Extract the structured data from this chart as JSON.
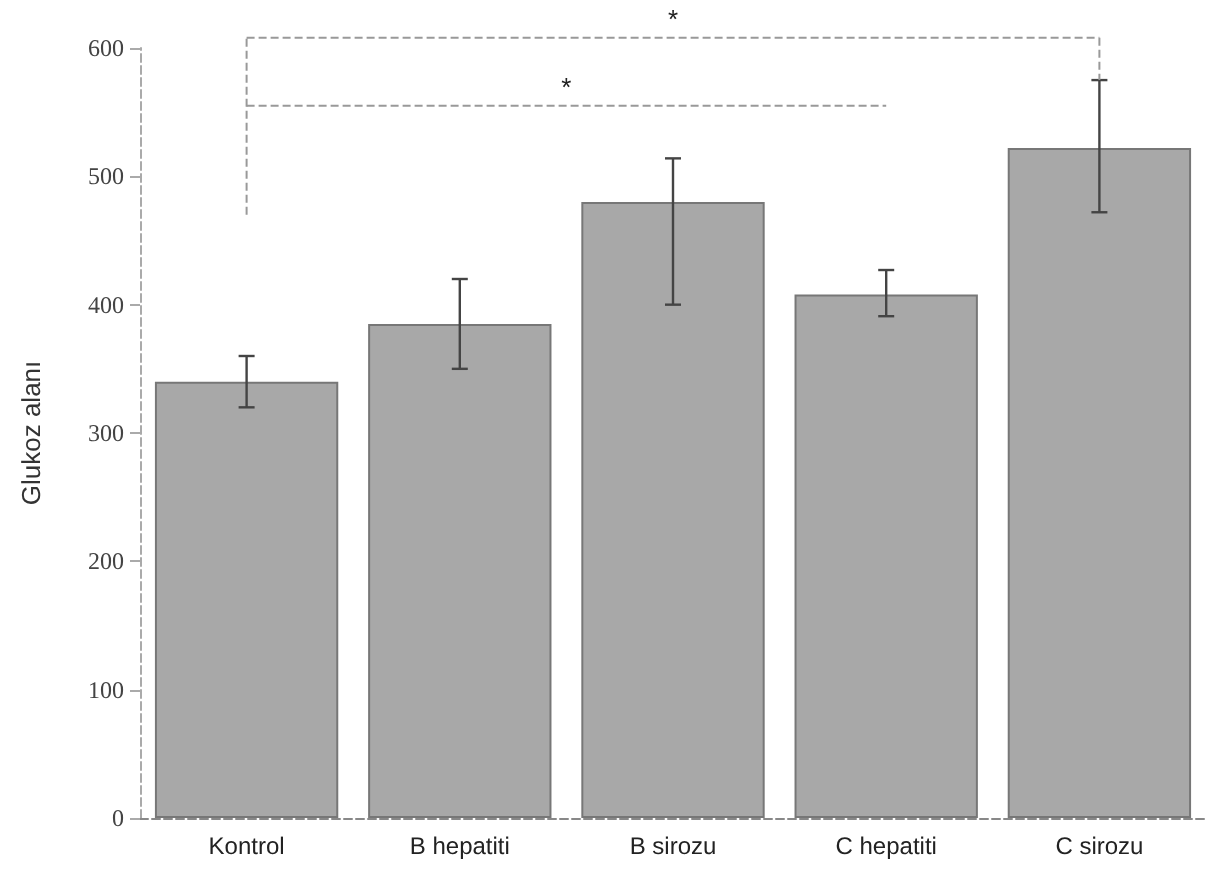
{
  "chart_data": {
    "type": "bar",
    "ylabel": "Glukoz alanı",
    "categories": [
      "Kontrol",
      "B hepatiti",
      "B sirozu",
      "C hepatiti",
      "C sirozu"
    ],
    "series": [
      {
        "color": "#a8a8a8",
        "values": [
          340,
          385,
          480,
          408,
          522
        ],
        "errors": [
          [
            320,
            360
          ],
          [
            350,
            420
          ],
          [
            400,
            514
          ],
          [
            391,
            427
          ],
          [
            472,
            575
          ]
        ]
      }
    ],
    "ylim": [
      0,
      600
    ],
    "yticks": [
      0,
      100,
      200,
      300,
      400,
      500,
      600
    ],
    "grid": false,
    "annotations": [
      "*",
      "*"
    ]
  }
}
